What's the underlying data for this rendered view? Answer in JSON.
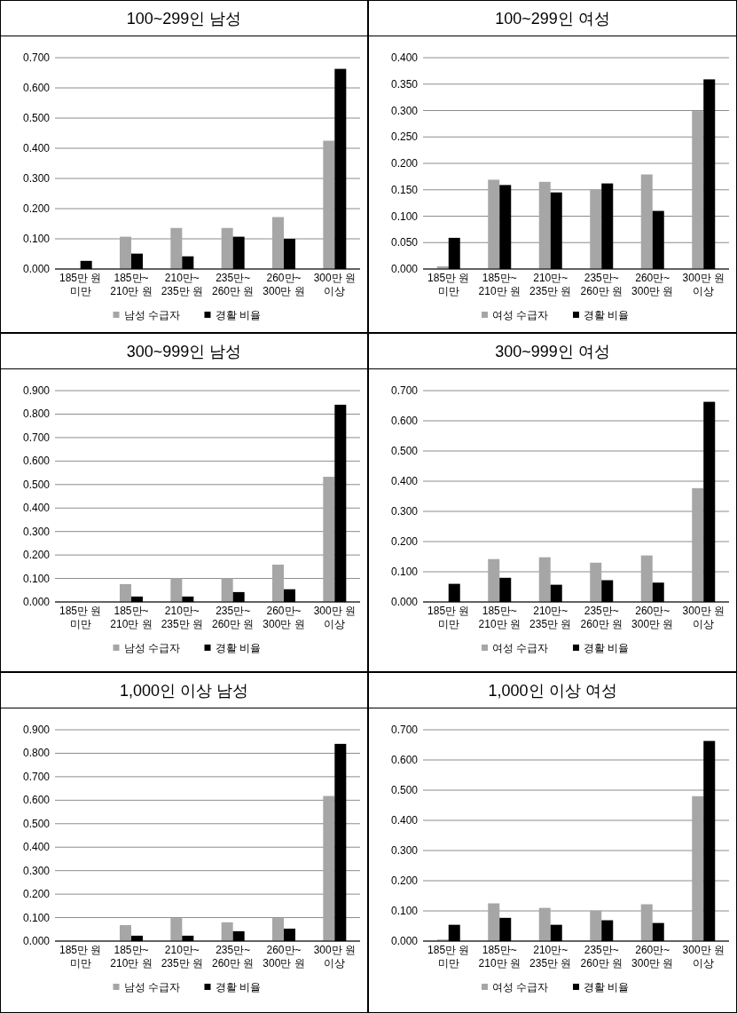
{
  "chart_data": [
    {
      "type": "bar",
      "title": "100~299인 남성",
      "categories": [
        "185만 원 미만",
        "185만~ 210만 원",
        "210만~ 235만 원",
        "235만~ 260만 원",
        "260만~ 300만 원",
        "300만 원 이상"
      ],
      "series": [
        {
          "name": "남성 수급자",
          "color": "#a6a6a6",
          "values": [
            0,
            0.107,
            0.136,
            0.136,
            0.172,
            0.425
          ]
        },
        {
          "name": "경활 비율",
          "color": "#000000",
          "values": [
            0.027,
            0.051,
            0.042,
            0.107,
            0.1,
            0.663
          ]
        }
      ],
      "ylim": [
        0,
        0.7
      ],
      "yticks": [
        {
          "value": 0,
          "label": "0.000"
        },
        {
          "value": 0.1,
          "label": "0.100"
        },
        {
          "value": 0.2,
          "label": "0.200"
        },
        {
          "value": 0.3,
          "label": "0.300"
        },
        {
          "value": 0.4,
          "label": "0.400"
        },
        {
          "value": 0.5,
          "label": "0.500"
        },
        {
          "value": 0.6,
          "label": "0.600"
        },
        {
          "value": 0.7,
          "label": "0.700"
        }
      ],
      "grid": "y",
      "legend": "bottom"
    },
    {
      "type": "bar",
      "title": "100~299인 여성",
      "categories": [
        "185만 원 미만",
        "185만~ 210만 원",
        "210만~ 235만 원",
        "235만~ 260만 원",
        "260만~ 300만 원",
        "300만 원 이상"
      ],
      "series": [
        {
          "name": "여성 수급자",
          "color": "#a6a6a6",
          "values": [
            0.005,
            0.169,
            0.165,
            0.15,
            0.179,
            0.299
          ]
        },
        {
          "name": "경활 비율",
          "color": "#000000",
          "values": [
            0.059,
            0.159,
            0.145,
            0.162,
            0.11,
            0.359
          ]
        }
      ],
      "ylim": [
        0,
        0.4
      ],
      "yticks": [
        {
          "value": 0,
          "label": "0.000"
        },
        {
          "value": 0.05,
          "label": "0.050"
        },
        {
          "value": 0.1,
          "label": "0.100"
        },
        {
          "value": 0.15,
          "label": "0.150"
        },
        {
          "value": 0.2,
          "label": "0.200"
        },
        {
          "value": 0.25,
          "label": "0.250"
        },
        {
          "value": 0.3,
          "label": "0.300"
        },
        {
          "value": 0.35,
          "label": "0.350"
        },
        {
          "value": 0.4,
          "label": "0.400"
        }
      ],
      "grid": "y",
      "legend": "bottom"
    },
    {
      "type": "bar",
      "title": "300~999인 남성",
      "categories": [
        "185만 원 미만",
        "185만~ 210만 원",
        "210만~ 235만 원",
        "235만~ 260만 원",
        "260만~ 300만 원",
        "300만 원 이상"
      ],
      "series": [
        {
          "name": "남성 수급자",
          "color": "#a6a6a6",
          "values": [
            0,
            0.076,
            0.101,
            0.101,
            0.159,
            0.533
          ]
        },
        {
          "name": "경활 비율",
          "color": "#000000",
          "values": [
            0,
            0.023,
            0.023,
            0.042,
            0.054,
            0.84
          ]
        }
      ],
      "ylim": [
        0,
        0.9
      ],
      "yticks": [
        {
          "value": 0,
          "label": "0.000"
        },
        {
          "value": 0.1,
          "label": "0.100"
        },
        {
          "value": 0.2,
          "label": "0.200"
        },
        {
          "value": 0.3,
          "label": "0.300"
        },
        {
          "value": 0.4,
          "label": "0.400"
        },
        {
          "value": 0.5,
          "label": "0.500"
        },
        {
          "value": 0.6,
          "label": "0.600"
        },
        {
          "value": 0.7,
          "label": "0.700"
        },
        {
          "value": 0.8,
          "label": "0.800"
        },
        {
          "value": 0.9,
          "label": "0.900"
        }
      ],
      "grid": "y",
      "legend": "bottom"
    },
    {
      "type": "bar",
      "title": "300~999인 여성",
      "categories": [
        "185만 원 미만",
        "185만~ 210만 원",
        "210만~ 235만 원",
        "235만~ 260만 원",
        "260만~ 300만 원",
        "300만 원 이상"
      ],
      "series": [
        {
          "name": "여성 수급자",
          "color": "#a6a6a6",
          "values": [
            0,
            0.142,
            0.148,
            0.13,
            0.154,
            0.377
          ]
        },
        {
          "name": "경활 비율",
          "color": "#000000",
          "values": [
            0.06,
            0.08,
            0.057,
            0.072,
            0.064,
            0.663
          ]
        }
      ],
      "ylim": [
        0,
        0.7
      ],
      "yticks": [
        {
          "value": 0,
          "label": "0.000"
        },
        {
          "value": 0.1,
          "label": "0.100"
        },
        {
          "value": 0.2,
          "label": "0.200"
        },
        {
          "value": 0.3,
          "label": "0.300"
        },
        {
          "value": 0.4,
          "label": "0.400"
        },
        {
          "value": 0.5,
          "label": "0.500"
        },
        {
          "value": 0.6,
          "label": "0.600"
        },
        {
          "value": 0.7,
          "label": "0.700"
        }
      ],
      "grid": "y",
      "legend": "bottom"
    },
    {
      "type": "bar",
      "title": "1,000인 이상 남성",
      "categories": [
        "185만 원 미만",
        "185만~ 210만 원",
        "210만~ 235만 원",
        "235만~ 260만 원",
        "260만~ 300만 원",
        "300만 원 이상"
      ],
      "series": [
        {
          "name": "남성 수급자",
          "color": "#a6a6a6",
          "values": [
            0,
            0.068,
            0.098,
            0.08,
            0.098,
            0.618
          ]
        },
        {
          "name": "경활 비율",
          "color": "#000000",
          "values": [
            0,
            0.023,
            0.023,
            0.042,
            0.053,
            0.84
          ]
        }
      ],
      "ylim": [
        0,
        0.9
      ],
      "yticks": [
        {
          "value": 0,
          "label": "0.000"
        },
        {
          "value": 0.1,
          "label": "0.100"
        },
        {
          "value": 0.2,
          "label": "0.200"
        },
        {
          "value": 0.3,
          "label": "0.300"
        },
        {
          "value": 0.4,
          "label": "0.400"
        },
        {
          "value": 0.5,
          "label": "0.500"
        },
        {
          "value": 0.6,
          "label": "0.600"
        },
        {
          "value": 0.7,
          "label": "0.700"
        },
        {
          "value": 0.8,
          "label": "0.800"
        },
        {
          "value": 0.9,
          "label": "0.900"
        }
      ],
      "grid": "y",
      "legend": "bottom"
    },
    {
      "type": "bar",
      "title": "1,000인 이상 여성",
      "categories": [
        "185만 원 미만",
        "185만~ 210만 원",
        "210만~ 235만 원",
        "235만~ 260만 원",
        "260만~ 300만 원",
        "300만 원 이상"
      ],
      "series": [
        {
          "name": "여성 수급자",
          "color": "#a6a6a6",
          "values": [
            0.005,
            0.125,
            0.11,
            0.101,
            0.122,
            0.48
          ]
        },
        {
          "name": "경활 비율",
          "color": "#000000",
          "values": [
            0.054,
            0.077,
            0.054,
            0.069,
            0.06,
            0.663
          ]
        }
      ],
      "ylim": [
        0,
        0.7
      ],
      "yticks": [
        {
          "value": 0,
          "label": "0.000"
        },
        {
          "value": 0.1,
          "label": "0.100"
        },
        {
          "value": 0.2,
          "label": "0.200"
        },
        {
          "value": 0.3,
          "label": "0.300"
        },
        {
          "value": 0.4,
          "label": "0.400"
        },
        {
          "value": 0.5,
          "label": "0.500"
        },
        {
          "value": 0.6,
          "label": "0.600"
        },
        {
          "value": 0.7,
          "label": "0.700"
        }
      ],
      "grid": "y",
      "legend": "bottom"
    }
  ]
}
